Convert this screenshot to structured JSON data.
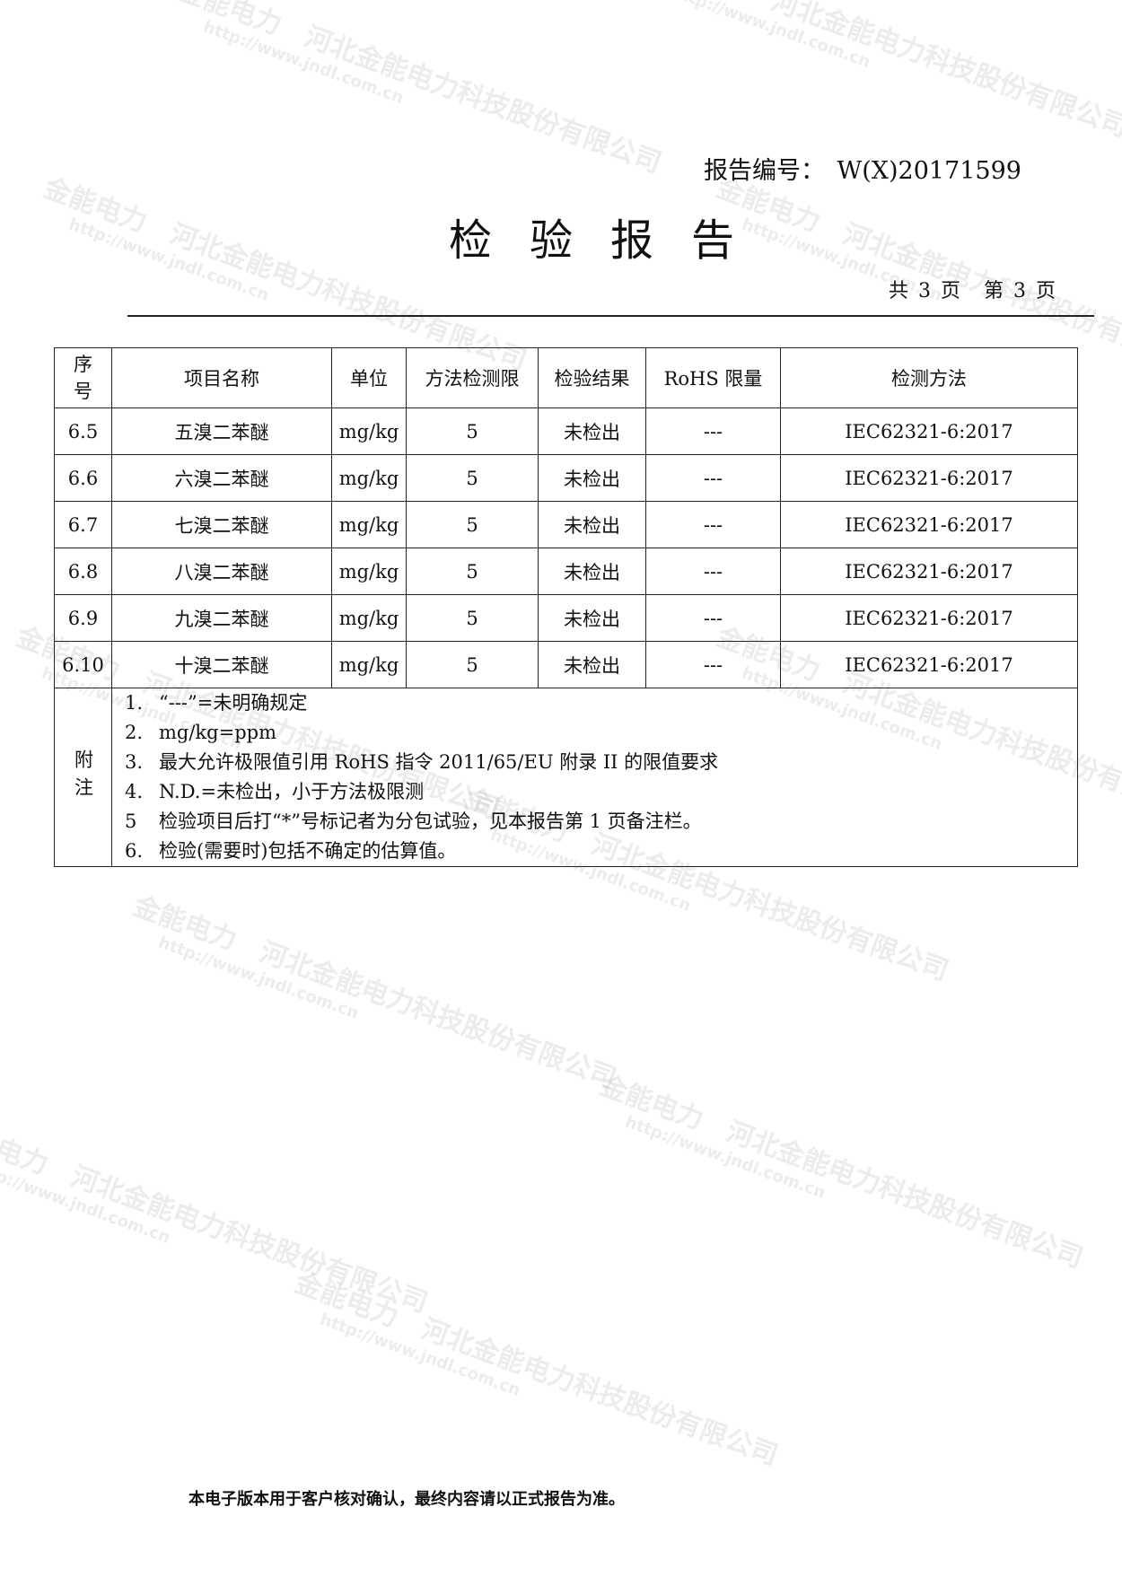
{
  "header": {
    "report_no_label": "报告编号：",
    "report_no": "W(X)20171599",
    "title": "检验报告",
    "pages": "共 3 页　第 3 页"
  },
  "table": {
    "columns": [
      "序号",
      "项目名称",
      "单位",
      "方法检测限",
      "检验结果",
      "RoHS 限量",
      "检测方法"
    ],
    "rows": [
      [
        "6.5",
        "五溴二苯醚",
        "mg/kg",
        "5",
        "未检出",
        "---",
        "IEC62321-6:2017"
      ],
      [
        "6.6",
        "六溴二苯醚",
        "mg/kg",
        "5",
        "未检出",
        "---",
        "IEC62321-6:2017"
      ],
      [
        "6.7",
        "七溴二苯醚",
        "mg/kg",
        "5",
        "未检出",
        "---",
        "IEC62321-6:2017"
      ],
      [
        "6.8",
        "八溴二苯醚",
        "mg/kg",
        "5",
        "未检出",
        "---",
        "IEC62321-6:2017"
      ],
      [
        "6.9",
        "九溴二苯醚",
        "mg/kg",
        "5",
        "未检出",
        "---",
        "IEC62321-6:2017"
      ],
      [
        "6.10",
        "十溴二苯醚",
        "mg/kg",
        "5",
        "未检出",
        "---",
        "IEC62321-6:2017"
      ]
    ],
    "notes_label": "附注",
    "notes": [
      {
        "n": "1.",
        "text": "“---”=未明确规定"
      },
      {
        "n": "2.",
        "text": "mg/kg=ppm"
      },
      {
        "n": "3.",
        "text": "最大允许极限值引用 RoHS 指令 2011/65/EU 附录 II 的限值要求"
      },
      {
        "n": "4.",
        "text": "N.D.=未检出，小于方法极限测"
      },
      {
        "n": "5",
        "text": "检验项目后打“*”号标记者为分包试验，见本报告第 1 页备注栏。"
      },
      {
        "n": "6.",
        "text": "检验(需要时)包括不确定的估算值。"
      }
    ]
  },
  "footer": "本电子版本用于客户核对确认，最终内容请以正式报告为准。",
  "watermark": {
    "company": "河北金能电力科技股份有限公司",
    "url": "http://www.jndl.com.cn",
    "logo": "金能电力"
  }
}
